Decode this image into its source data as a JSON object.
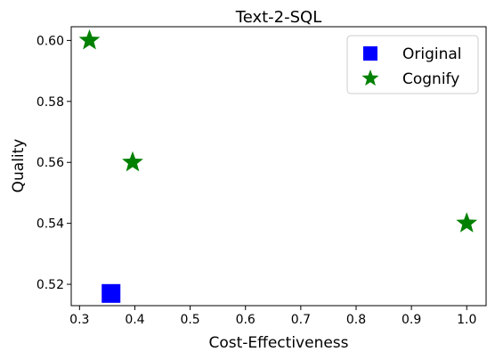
{
  "chart_data": {
    "type": "scatter",
    "title": "Text-2-SQL",
    "xlabel": "Cost-Effectiveness",
    "ylabel": "Quality",
    "xlim": [
      0.285,
      1.035
    ],
    "ylim": [
      0.513,
      0.6045
    ],
    "xticks": [
      0.3,
      0.4,
      0.5,
      0.6,
      0.7,
      0.8,
      0.9,
      1.0
    ],
    "xtick_labels": [
      "0.3",
      "0.4",
      "0.5",
      "0.6",
      "0.7",
      "0.8",
      "0.9",
      "1.0"
    ],
    "yticks": [
      0.52,
      0.54,
      0.56,
      0.58,
      0.6
    ],
    "ytick_labels": [
      "0.52",
      "0.54",
      "0.56",
      "0.58",
      "0.60"
    ],
    "grid": false,
    "legend_position": "top-right",
    "series": [
      {
        "name": "Original",
        "marker": "square",
        "color": "#0000ff",
        "points": [
          {
            "x": 0.357,
            "y": 0.517
          }
        ]
      },
      {
        "name": "Cognify",
        "marker": "star",
        "color": "#008000",
        "points": [
          {
            "x": 0.318,
            "y": 0.6
          },
          {
            "x": 0.396,
            "y": 0.56
          },
          {
            "x": 1.0,
            "y": 0.54
          }
        ]
      }
    ]
  }
}
